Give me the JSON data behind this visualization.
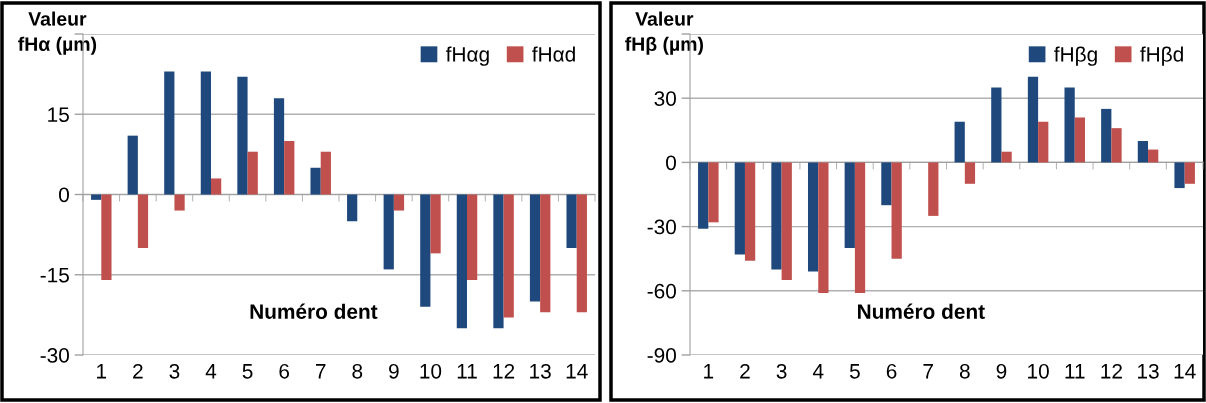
{
  "chart_data": [
    {
      "type": "bar",
      "xlabel": "Numéro dent",
      "ylabel": "Valeur\nfHα (µm)",
      "categories": [
        "1",
        "2",
        "3",
        "4",
        "5",
        "6",
        "7",
        "8",
        "9",
        "10",
        "11",
        "12",
        "13",
        "14"
      ],
      "series": [
        {
          "name": "fHαg",
          "color": "#1f497d",
          "values": [
            -1,
            11,
            23,
            23,
            22,
            18,
            5,
            -5,
            -14,
            -21,
            -25,
            -25,
            -20,
            -10
          ]
        },
        {
          "name": "fHαd",
          "color": "#c0504d",
          "values": [
            -16,
            -10,
            -3,
            3,
            8,
            10,
            8,
            0,
            -3,
            -11,
            -16,
            -23,
            -22,
            -22
          ]
        }
      ],
      "ylim": [
        -30,
        30
      ],
      "yticks": [
        -30,
        -15,
        0,
        15,
        {
          "value": 30,
          "label": null
        }
      ],
      "grid": "y",
      "legend": "top right"
    },
    {
      "type": "bar",
      "xlabel": "Numéro dent",
      "ylabel": "Valeur\nfHβ (µm)",
      "categories": [
        "1",
        "2",
        "3",
        "4",
        "5",
        "6",
        "7",
        "8",
        "9",
        "10",
        "11",
        "12",
        "13",
        "14"
      ],
      "series": [
        {
          "name": "fHβg",
          "color": "#1f497d",
          "values": [
            -31,
            -43,
            -50,
            -51,
            -40,
            -20,
            0,
            19,
            35,
            40,
            35,
            25,
            10,
            -12
          ]
        },
        {
          "name": "fHβd",
          "color": "#c0504d",
          "values": [
            -28,
            -46,
            -55,
            -61,
            -61,
            -45,
            -25,
            -10,
            5,
            19,
            21,
            16,
            6,
            -10
          ]
        }
      ],
      "ylim": [
        -90,
        60
      ],
      "yticks": [
        -90,
        -60,
        -30,
        0,
        30,
        {
          "value": 60,
          "label": null
        }
      ],
      "grid": "y",
      "legend": "top right"
    }
  ]
}
